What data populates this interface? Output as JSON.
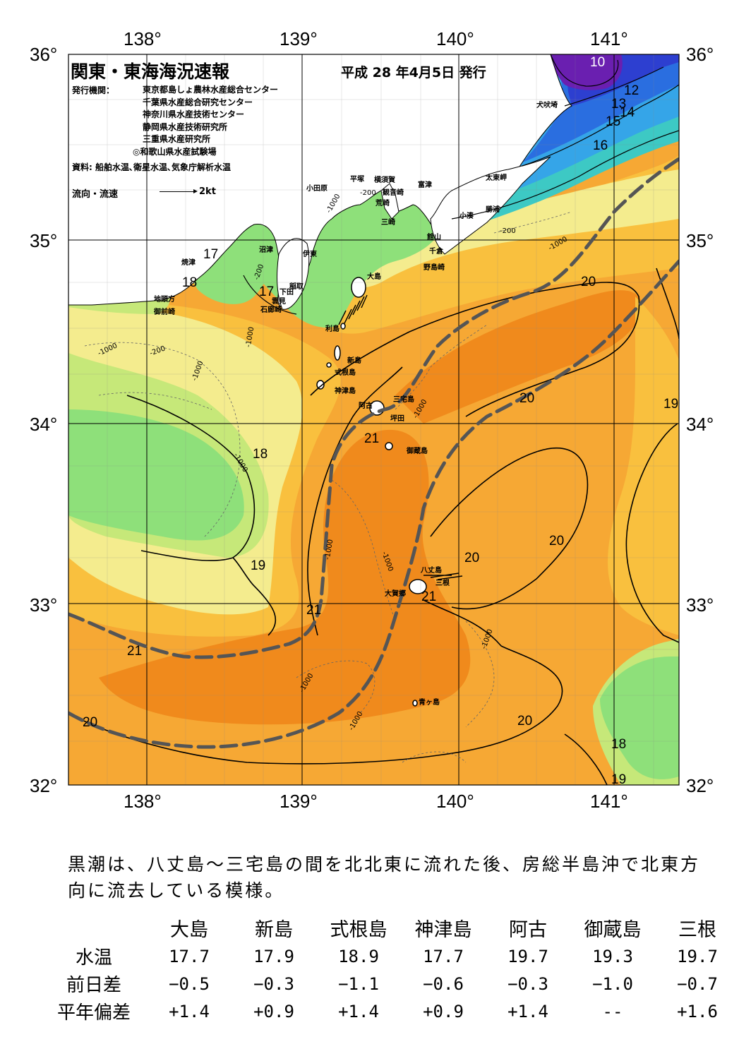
{
  "header": {
    "title": "関東・東海海況速報",
    "issue_date": "平成 28 年4月5日 発行"
  },
  "issuer_label": "発行機関：",
  "issuers": [
    "東京都島しょ農林水産総合センター",
    "千葉県水産総合研究センター",
    "神奈川県水産技術センター",
    "静岡県水産技術研究所",
    "三重県水産研究所",
    "◎和歌山県水産試験場"
  ],
  "source": "資料: 船舶水温､衛星水温､気象庁解析水温",
  "legend": {
    "label": "流向・流速",
    "value": "2kt"
  },
  "axes": {
    "lon": [
      "138°",
      "139°",
      "140°",
      "141°"
    ],
    "lat": [
      "36°",
      "35°",
      "34°",
      "33°",
      "32°"
    ]
  },
  "places": [
    {
      "name": "犬吠埼"
    },
    {
      "name": "太東岬"
    },
    {
      "name": "勝浦"
    },
    {
      "name": "小湊"
    },
    {
      "name": "富津"
    },
    {
      "name": "館山"
    },
    {
      "name": "千倉"
    },
    {
      "name": "野島崎"
    },
    {
      "name": "横須賀"
    },
    {
      "name": "観音崎"
    },
    {
      "name": "荒崎"
    },
    {
      "name": "三崎"
    },
    {
      "name": "平塚"
    },
    {
      "name": "小田原"
    },
    {
      "name": "沼津"
    },
    {
      "name": "伊東"
    },
    {
      "name": "稲取"
    },
    {
      "name": "下田"
    },
    {
      "name": "雲見"
    },
    {
      "name": "石廊崎"
    },
    {
      "name": "焼津"
    },
    {
      "name": "地頭方"
    },
    {
      "name": "御前崎"
    },
    {
      "name": "大島"
    },
    {
      "name": "利島"
    },
    {
      "name": "新島"
    },
    {
      "name": "式根島"
    },
    {
      "name": "神津島"
    },
    {
      "name": "三宅島"
    },
    {
      "name": "阿古"
    },
    {
      "name": "坪田"
    },
    {
      "name": "御蔵島"
    },
    {
      "name": "八丈島"
    },
    {
      "name": "三根"
    },
    {
      "name": "大賀郷"
    },
    {
      "name": "青ヶ島"
    }
  ],
  "isotherm_labels": [
    "10",
    "12",
    "13",
    "14",
    "15",
    "16",
    "17",
    "18",
    "19",
    "20",
    "21"
  ],
  "depth_labels": [
    "-200",
    "-1000"
  ],
  "note": "黒潮は、八丈島～三宅島の間を北北東に流れた後、房総半島沖で北東方向に流去している模様。",
  "observation_table": {
    "stations": [
      "大島",
      "新島",
      "式根島",
      "神津島",
      "阿古",
      "御蔵島",
      "三根"
    ],
    "rows": [
      {
        "label": "水温",
        "values": [
          "17.7",
          "17.9",
          "18.9",
          "17.7",
          "19.7",
          "19.3",
          "19.7"
        ]
      },
      {
        "label": "前日差",
        "values": [
          "−0.5",
          "−0.3",
          "−1.1",
          "−0.6",
          "−0.3",
          "−1.0",
          "−0.7"
        ]
      },
      {
        "label": "平年偏差",
        "values": [
          "+1.4",
          "+0.9",
          "+1.4",
          "+0.9",
          "+1.4",
          "--",
          "+1.6"
        ]
      }
    ]
  },
  "colors": {
    "sst_10": "#6a1fb0",
    "sst_12": "#2d3fd0",
    "sst_14": "#2a6ee0",
    "sst_15": "#35a5e8",
    "sst_16": "#3dc9c4",
    "sst_17": "#8ee07a",
    "sst_18": "#c6e879",
    "sst_18_5": "#f4ec8e",
    "sst_19": "#fbd85d",
    "sst_19_5": "#f9c03e",
    "sst_20": "#f6a834",
    "sst_21": "#f08a1c",
    "land": "#ffffff",
    "kuroshio_axis": "#555555"
  }
}
